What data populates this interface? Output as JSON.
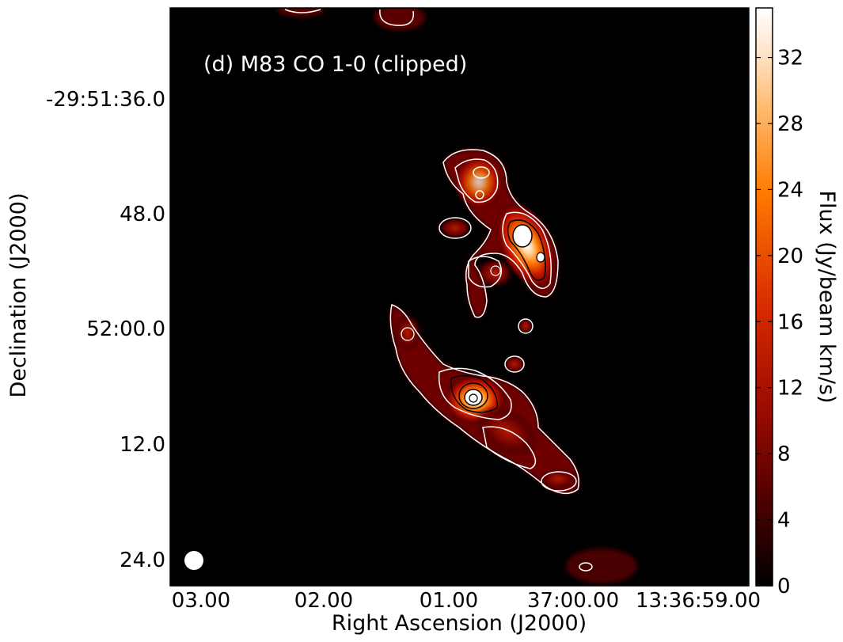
{
  "chart_data": {
    "type": "heatmap",
    "title": "(d) M83 CO 1-0 (clipped)",
    "xlabel": "Right Ascension (J2000)",
    "ylabel": "Declination (J2000)",
    "x_ticks": [
      "03.00",
      "02.00",
      "01.00",
      "37:00.00",
      "13:36:59.00"
    ],
    "y_ticks": [
      "-29:51:36.0",
      "48.0",
      "52:00.0",
      "12.0",
      "24.0"
    ],
    "colorbar": {
      "label": "Flux (Jy/beam km/s)",
      "ticks": [
        0,
        4,
        8,
        12,
        16,
        20,
        24,
        28,
        32
      ],
      "range": [
        0,
        35
      ],
      "colormap": "gist_heat",
      "stops": [
        "#000000",
        "#4a0000",
        "#9a0a00",
        "#d62a00",
        "#ff7a00",
        "#ffb86a",
        "#ffe7cf",
        "#ffffff"
      ]
    },
    "background_color": "#000000",
    "contour_color_outer": "#ffffff",
    "contour_color_inner": "#000000",
    "emission_peaks": [
      {
        "component": "northern arm peak",
        "value": 35
      },
      {
        "component": "southern arm peak",
        "value": 33
      }
    ],
    "beam": "filled white circle, lower left"
  }
}
